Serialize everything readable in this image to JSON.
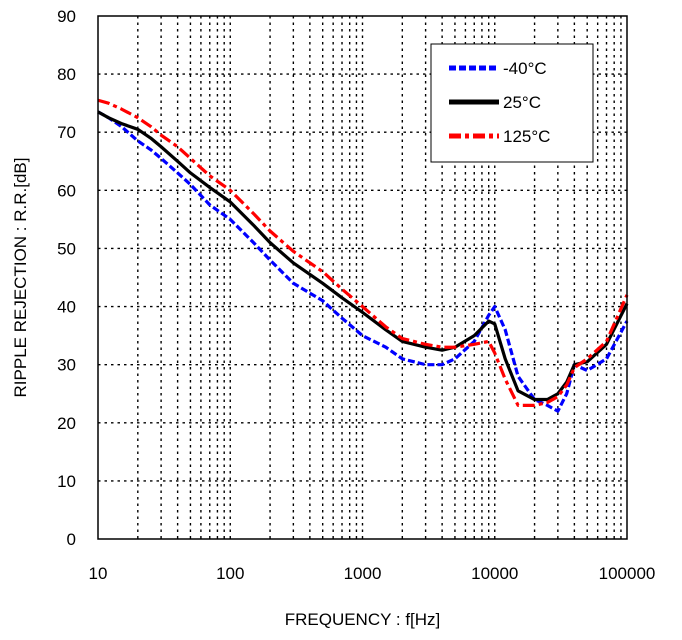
{
  "chart_data": {
    "type": "line",
    "title": "",
    "xlabel": "FREQUENCY : f[Hz]",
    "ylabel": "RIPPLE REJECTION : R.R.[dB]",
    "x_scale": "log",
    "xlim": [
      10,
      100000
    ],
    "ylim": [
      0,
      90
    ],
    "x_ticks": [
      10,
      100,
      1000,
      10000,
      100000
    ],
    "x_tick_labels": [
      "10",
      "100",
      "1000",
      "10000",
      "100000"
    ],
    "y_ticks": [
      0,
      10,
      20,
      30,
      40,
      50,
      60,
      70,
      80,
      90
    ],
    "y_tick_labels": [
      "0",
      "10",
      "20",
      "30",
      "40",
      "50",
      "60",
      "70",
      "80",
      "90"
    ],
    "grid": "dotted, major and minor",
    "legend_position": "top-right",
    "series": [
      {
        "name": "-40°C",
        "color": "#0000ff",
        "style": "dashed",
        "x": [
          10,
          12,
          15,
          20,
          25,
          30,
          40,
          50,
          70,
          100,
          150,
          200,
          300,
          500,
          700,
          1000,
          1500,
          2000,
          3000,
          4000,
          5000,
          7000,
          9000,
          10000,
          12000,
          15000,
          20000,
          25000,
          30000,
          35000,
          40000,
          50000,
          70000,
          100000
        ],
        "values": [
          73.5,
          72.5,
          71,
          68.5,
          67,
          65.5,
          63,
          61,
          57.5,
          55,
          51,
          48,
          44,
          41,
          38,
          35,
          33,
          31,
          30,
          30,
          31,
          34,
          38.5,
          40,
          36,
          28,
          24,
          23,
          22,
          25,
          30,
          29,
          31,
          37.5
        ]
      },
      {
        "name": "25°C",
        "color": "#000000",
        "style": "solid",
        "x": [
          10,
          12,
          15,
          20,
          25,
          30,
          40,
          50,
          70,
          100,
          150,
          200,
          300,
          500,
          700,
          1000,
          1500,
          2000,
          3000,
          4000,
          5000,
          7000,
          9000,
          10000,
          12000,
          15000,
          20000,
          25000,
          30000,
          35000,
          40000,
          50000,
          70000,
          100000
        ],
        "values": [
          73.5,
          72.5,
          71.5,
          70.5,
          69,
          67.5,
          65,
          63,
          60.5,
          58,
          54,
          51,
          47.5,
          44,
          41.5,
          39,
          36,
          34,
          33,
          32.5,
          33,
          35,
          37.5,
          37,
          31,
          25.5,
          24,
          24,
          25,
          27,
          30,
          30.5,
          33.5,
          40.5
        ]
      },
      {
        "name": "125°C",
        "color": "#ff0000",
        "style": "dashdot",
        "x": [
          10,
          12,
          15,
          20,
          25,
          30,
          40,
          50,
          70,
          100,
          150,
          200,
          300,
          500,
          700,
          1000,
          1500,
          2000,
          3000,
          4000,
          5000,
          7000,
          9000,
          10000,
          12000,
          15000,
          20000,
          25000,
          30000,
          35000,
          40000,
          50000,
          70000,
          100000
        ],
        "values": [
          75.5,
          75,
          74,
          72.5,
          71,
          69.5,
          67.5,
          65.5,
          62.5,
          60,
          56,
          53,
          49.5,
          46,
          43,
          40,
          36.5,
          34.5,
          33.5,
          33,
          33,
          33.5,
          34,
          32,
          27.5,
          23,
          23,
          23.5,
          24.5,
          26.5,
          29.5,
          31,
          34,
          42
        ]
      }
    ]
  }
}
